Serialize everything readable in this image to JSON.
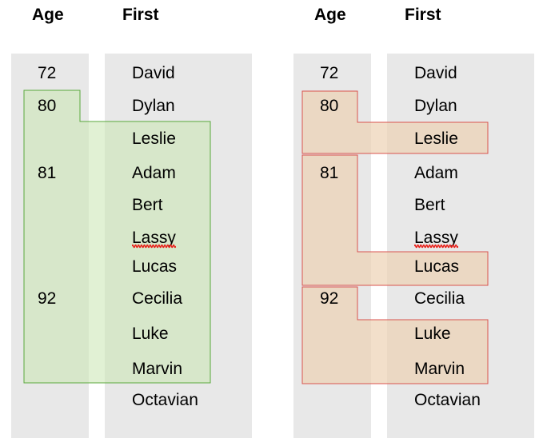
{
  "headers": {
    "age": "Age",
    "first": "First"
  },
  "rows": [
    {
      "age": "72",
      "first": "David"
    },
    {
      "age": "80",
      "first": "Dylan"
    },
    {
      "age": "",
      "first": "Leslie"
    },
    {
      "age": "81",
      "first": "Adam"
    },
    {
      "age": "",
      "first": "Bert"
    },
    {
      "age": "",
      "first": "Lassy",
      "misspelled": true
    },
    {
      "age": "",
      "first": "Lucas"
    },
    {
      "age": "92",
      "first": "Cecilia"
    },
    {
      "age": "",
      "first": "Luke"
    },
    {
      "age": "",
      "first": "Marvin"
    },
    {
      "age": "",
      "first": "Octavian"
    }
  ],
  "panels": [
    {
      "highlight": "single-combined",
      "fill": "#c9e6b0",
      "stroke": "#5aa83c"
    },
    {
      "highlight": "per-group",
      "fill": "#ecd2b4",
      "stroke": "#d9534f"
    }
  ],
  "colors": {
    "column_bg": "#e8e8e8",
    "spellcheck": "#e8201a"
  }
}
